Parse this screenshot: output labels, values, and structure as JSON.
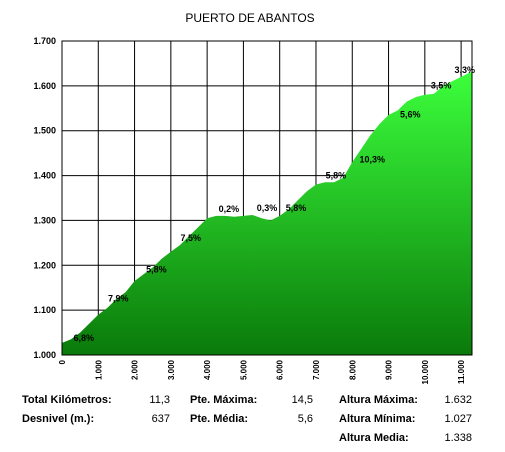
{
  "chart_data": {
    "type": "area",
    "title": "PUERTO DE ABANTOS",
    "xlabel": "",
    "ylabel": "",
    "xlim": [
      0,
      11.3
    ],
    "ylim": [
      1.0,
      1.7
    ],
    "y_ticks": [
      "1.000",
      "1.100",
      "1.200",
      "1.300",
      "1.400",
      "1.500",
      "1.600",
      "1.700"
    ],
    "x_ticks": [
      "0",
      "1.000",
      "2.000",
      "3.000",
      "4.000",
      "5.000",
      "6.000",
      "7.000",
      "8.000",
      "9.000",
      "10.000",
      "11.000"
    ],
    "grid": true,
    "fill_color_top": "#3cff3c",
    "fill_color_bottom": "#0a7a0a",
    "series": [
      {
        "x": [
          0,
          0.25,
          0.5,
          0.75,
          1.0,
          1.25,
          1.5,
          1.75,
          2.0,
          2.25,
          2.5,
          2.75,
          3.0,
          3.25,
          3.5,
          3.75,
          4.0,
          4.25,
          4.5,
          4.75,
          5.0,
          5.25,
          5.5,
          5.75,
          6.0,
          6.25,
          6.5,
          6.75,
          7.0,
          7.25,
          7.5,
          7.75,
          8.0,
          8.25,
          8.5,
          8.75,
          9.0,
          9.25,
          9.5,
          9.75,
          10.0,
          10.25,
          10.5,
          10.75,
          11.0,
          11.3
        ],
        "values": [
          1.027,
          1.035,
          1.05,
          1.07,
          1.09,
          1.105,
          1.125,
          1.14,
          1.165,
          1.18,
          1.195,
          1.215,
          1.23,
          1.245,
          1.265,
          1.285,
          1.305,
          1.31,
          1.31,
          1.308,
          1.31,
          1.312,
          1.305,
          1.3,
          1.31,
          1.325,
          1.345,
          1.365,
          1.38,
          1.385,
          1.385,
          1.395,
          1.43,
          1.46,
          1.49,
          1.515,
          1.535,
          1.545,
          1.565,
          1.575,
          1.58,
          1.582,
          1.6,
          1.61,
          1.62,
          1.632
        ]
      }
    ],
    "annotations": [
      {
        "text": "6,8%",
        "x": 0.6,
        "y": 1.022
      },
      {
        "text": "7,9%",
        "x": 1.55,
        "y": 1.11
      },
      {
        "text": "5,8%",
        "x": 2.6,
        "y": 1.175
      },
      {
        "text": "7,5%",
        "x": 3.55,
        "y": 1.245
      },
      {
        "text": "0,2%",
        "x": 4.6,
        "y": 1.31
      },
      {
        "text": "0,3%",
        "x": 5.65,
        "y": 1.312
      },
      {
        "text": "5,8%",
        "x": 6.45,
        "y": 1.312
      },
      {
        "text": "5,8%",
        "x": 7.55,
        "y": 1.385
      },
      {
        "text": "10,3%",
        "x": 8.55,
        "y": 1.42
      },
      {
        "text": "5,6%",
        "x": 9.6,
        "y": 1.52
      },
      {
        "text": "3,5%",
        "x": 10.45,
        "y": 1.585
      },
      {
        "text": "3,3%",
        "x": 11.1,
        "y": 1.62
      }
    ]
  },
  "stats": {
    "total_km_label": "Total Kilómetros:",
    "total_km_value": "11,3",
    "desnivel_label": "Desnivel (m.):",
    "desnivel_value": "637",
    "pte_max_label": "Pte. Máxima:",
    "pte_max_value": "14,5",
    "pte_media_label": "Pte. Média:",
    "pte_media_value": "5,6",
    "alt_max_label": "Altura Máxima:",
    "alt_max_value": "1.632",
    "alt_min_label": "Altura Mínima:",
    "alt_min_value": "1.027",
    "alt_media_label": "Altura Media:",
    "alt_media_value": "1.338"
  }
}
